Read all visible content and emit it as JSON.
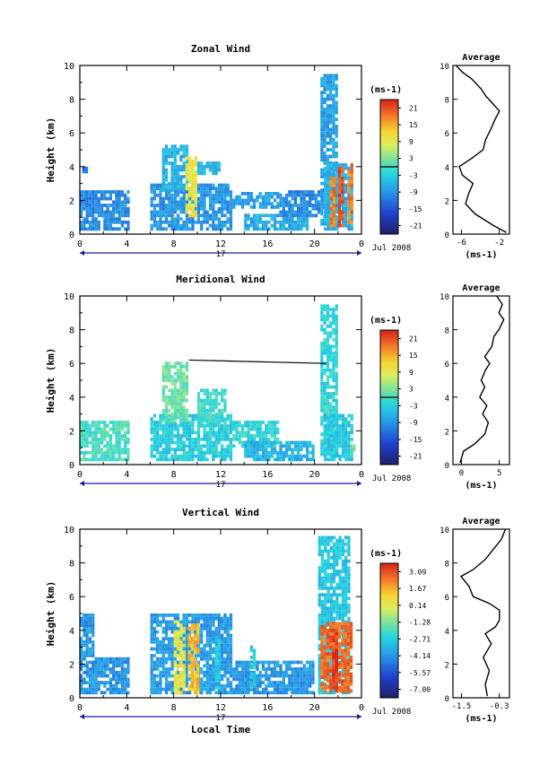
{
  "chart_data": [
    {
      "type": "heatmap",
      "title": "Zonal Wind",
      "ylabel": "Height (km)",
      "ylim": [
        0,
        10
      ],
      "yticks": [
        "0",
        "2",
        "4",
        "6",
        "8",
        "10"
      ],
      "xticks": [
        "0",
        "4",
        "8",
        "12",
        "16",
        "20",
        "0"
      ],
      "date_label": "17",
      "month_label": "Jul 2008",
      "colorbar": {
        "unit_html": "(ms<sup>-1</sup>)",
        "unit": "(ms-1)",
        "ticks": [
          "21",
          "15",
          "9",
          "3",
          "-3",
          "-9",
          "-15",
          "-21"
        ],
        "range": [
          -24,
          24
        ],
        "zero_line": 0
      },
      "profile": {
        "title": "Average",
        "xlim": [
          -10,
          -1
        ],
        "xticks": [
          "-6",
          "-2"
        ],
        "xlabel": "(ms-1)",
        "points": [
          [
            -1.5,
            0.1
          ],
          [
            -3.5,
            0.5
          ],
          [
            -6.5,
            1.2
          ],
          [
            -8.0,
            1.8
          ],
          [
            -7.5,
            2.4
          ],
          [
            -6.8,
            3.0
          ],
          [
            -8.5,
            3.5
          ],
          [
            -9.0,
            4.0
          ],
          [
            -7.0,
            4.5
          ],
          [
            -5.2,
            5.0
          ],
          [
            -4.8,
            5.6
          ],
          [
            -4.0,
            6.2
          ],
          [
            -3.3,
            6.8
          ],
          [
            -2.6,
            7.3
          ],
          [
            -3.8,
            7.8
          ],
          [
            -4.8,
            8.2
          ],
          [
            -5.5,
            8.6
          ],
          [
            -7.0,
            9.2
          ],
          [
            -8.5,
            9.6
          ],
          [
            -9.5,
            10.0
          ]
        ]
      },
      "blocks": [
        {
          "t": [
            0,
            4.2
          ],
          "h": [
            0.2,
            2.5
          ],
          "v": -10
        },
        {
          "t": [
            0.2,
            0.6
          ],
          "h": [
            3.4,
            3.9
          ],
          "v": -12
        },
        {
          "t": [
            6.0,
            13.0
          ],
          "h": [
            0.2,
            3.0
          ],
          "v": -9
        },
        {
          "t": [
            7.0,
            9.2
          ],
          "h": [
            2.5,
            5.2
          ],
          "v": -6
        },
        {
          "t": [
            9.0,
            9.8
          ],
          "h": [
            1.0,
            4.5
          ],
          "v": 10
        },
        {
          "t": [
            10.0,
            12.0
          ],
          "h": [
            3.5,
            4.2
          ],
          "v": -6
        },
        {
          "t": [
            13.0,
            17.0
          ],
          "h": [
            1.5,
            2.5
          ],
          "v": -8
        },
        {
          "t": [
            14.0,
            19.5
          ],
          "h": [
            0.2,
            1.2
          ],
          "v": -7
        },
        {
          "t": [
            17.0,
            20.5
          ],
          "h": [
            1.0,
            2.5
          ],
          "v": -10
        },
        {
          "t": [
            20.5,
            22.0
          ],
          "h": [
            0.5,
            9.4
          ],
          "v": -8
        },
        {
          "t": [
            20.8,
            23.2
          ],
          "h": [
            0.2,
            4.2
          ],
          "v": -6
        },
        {
          "t": [
            21.3,
            21.7
          ],
          "h": [
            0.4,
            3.4
          ],
          "v": 18
        },
        {
          "t": [
            22.0,
            22.5
          ],
          "h": [
            0.4,
            4.0
          ],
          "v": 21
        },
        {
          "t": [
            22.8,
            23.2
          ],
          "h": [
            0.6,
            4.2
          ],
          "v": 18
        }
      ]
    },
    {
      "type": "heatmap",
      "title": "Meridional Wind",
      "ylabel": "Height (km)",
      "ylim": [
        0,
        10
      ],
      "yticks": [
        "0",
        "2",
        "4",
        "6",
        "8",
        "10"
      ],
      "xticks": [
        "0",
        "4",
        "8",
        "12",
        "16",
        "20",
        "0"
      ],
      "date_label": "17",
      "month_label": "Jul 2008",
      "colorbar": {
        "unit_html": "(ms<sup>-1</sup>)",
        "unit": "(ms-1)",
        "ticks": [
          "21",
          "15",
          "9",
          "3",
          "-3",
          "-9",
          "-15",
          "-21"
        ],
        "range": [
          -24,
          24
        ],
        "zero_line": 0
      },
      "profile": {
        "title": "Average",
        "xlim": [
          -1,
          7
        ],
        "xticks": [
          "0",
          "5"
        ],
        "xlabel": "(ms-1)",
        "points": [
          [
            0.0,
            0.1
          ],
          [
            0.5,
            0.8
          ],
          [
            2.0,
            1.2
          ],
          [
            3.5,
            1.8
          ],
          [
            4.0,
            2.5
          ],
          [
            3.2,
            3.0
          ],
          [
            3.8,
            3.5
          ],
          [
            2.8,
            4.0
          ],
          [
            3.5,
            4.6
          ],
          [
            3.0,
            5.0
          ],
          [
            3.6,
            5.6
          ],
          [
            4.2,
            6.0
          ],
          [
            3.5,
            6.4
          ],
          [
            4.5,
            7.0
          ],
          [
            4.8,
            7.6
          ],
          [
            5.5,
            8.0
          ],
          [
            6.2,
            8.6
          ],
          [
            5.5,
            9.0
          ],
          [
            6.0,
            9.5
          ],
          [
            5.2,
            10.0
          ]
        ]
      },
      "blocks": [
        {
          "t": [
            0,
            4.2
          ],
          "h": [
            0.2,
            2.5
          ],
          "v": 0
        },
        {
          "t": [
            6.0,
            13.0
          ],
          "h": [
            0.2,
            3.0
          ],
          "v": -3
        },
        {
          "t": [
            7.0,
            9.2
          ],
          "h": [
            2.5,
            6.0
          ],
          "v": 2
        },
        {
          "t": [
            10.0,
            12.5
          ],
          "h": [
            2.5,
            4.5
          ],
          "v": -1
        },
        {
          "t": [
            13.0,
            17.0
          ],
          "h": [
            1.0,
            2.5
          ],
          "v": -2
        },
        {
          "t": [
            14.0,
            20.0
          ],
          "h": [
            0.2,
            1.4
          ],
          "v": -6
        },
        {
          "t": [
            20.5,
            22.0
          ],
          "h": [
            0.5,
            9.4
          ],
          "v": -2
        },
        {
          "t": [
            20.8,
            23.2
          ],
          "h": [
            0.2,
            3.0
          ],
          "v": -4
        },
        {
          "t": [
            23.0,
            23.4
          ],
          "h": [
            0.4,
            1.2
          ],
          "v": 2
        }
      ],
      "line": [
        [
          9.3,
          6.2
        ],
        [
          21.0,
          6.0
        ]
      ]
    },
    {
      "type": "heatmap",
      "title": "Vertical Wind",
      "ylabel": "Height (km)",
      "xlabel": "Local Time",
      "ylim": [
        0,
        10
      ],
      "yticks": [
        "0",
        "2",
        "4",
        "6",
        "8",
        "10"
      ],
      "xticks": [
        "0",
        "4",
        "8",
        "12",
        "16",
        "20",
        "0"
      ],
      "date_label": "17",
      "month_label": "Jul 2008",
      "colorbar": {
        "unit_html": "(ms<sup>-1</sup>)",
        "unit": "(ms-1)",
        "ticks": [
          "3.09",
          "1.67",
          "0.14",
          "-1.28",
          "-2.71",
          "-4.14",
          "-5.57",
          "-7.00"
        ],
        "range": [
          4.0,
          -8.0
        ],
        "zero_line": null
      },
      "profile": {
        "title": "Average",
        "xlim": [
          -1.6,
          -0.2
        ],
        "xticks": [
          "-1.5",
          "-0.3"
        ],
        "xlabel": "(ms-1)",
        "points": [
          [
            -0.75,
            0.1
          ],
          [
            -0.8,
            0.8
          ],
          [
            -0.7,
            1.6
          ],
          [
            -0.85,
            2.4
          ],
          [
            -0.65,
            3.2
          ],
          [
            -0.8,
            3.8
          ],
          [
            -0.55,
            4.2
          ],
          [
            -0.45,
            4.6
          ],
          [
            -0.45,
            5.2
          ],
          [
            -0.7,
            5.6
          ],
          [
            -1.1,
            6.0
          ],
          [
            -1.2,
            6.6
          ],
          [
            -1.4,
            7.2
          ],
          [
            -1.1,
            7.6
          ],
          [
            -0.8,
            8.2
          ],
          [
            -0.6,
            8.8
          ],
          [
            -0.4,
            9.4
          ],
          [
            -0.3,
            10.0
          ]
        ]
      },
      "blocks": [
        {
          "t": [
            0,
            4.2
          ],
          "h": [
            0.2,
            2.4
          ],
          "v": 0.3
        },
        {
          "t": [
            0,
            1.2
          ],
          "h": [
            2.4,
            5.0
          ],
          "v": 0.2
        },
        {
          "t": [
            6.0,
            13.0
          ],
          "h": [
            0.2,
            5.0
          ],
          "v": 0.1
        },
        {
          "t": [
            13.0,
            20.0
          ],
          "h": [
            0.2,
            2.0
          ],
          "v": 0.2
        },
        {
          "t": [
            8.0,
            9.0
          ],
          "h": [
            0.2,
            4.5
          ],
          "v": -4.5
        },
        {
          "t": [
            9.2,
            10.0
          ],
          "h": [
            0.2,
            4.3
          ],
          "v": -5.5
        },
        {
          "t": [
            11.5,
            12.0
          ],
          "h": [
            0.5,
            3.5
          ],
          "v": -1.0
        },
        {
          "t": [
            14.5,
            15.0
          ],
          "h": [
            0.5,
            3.0
          ],
          "v": -1.2
        },
        {
          "t": [
            20.3,
            23.0
          ],
          "h": [
            0.2,
            9.5
          ],
          "v": -1.0
        },
        {
          "t": [
            20.5,
            23.2
          ],
          "h": [
            0.3,
            4.5
          ],
          "v": -6.8
        },
        {
          "t": [
            21.5,
            22.0
          ],
          "h": [
            0.5,
            4.0
          ],
          "v": -7.5
        }
      ]
    }
  ]
}
